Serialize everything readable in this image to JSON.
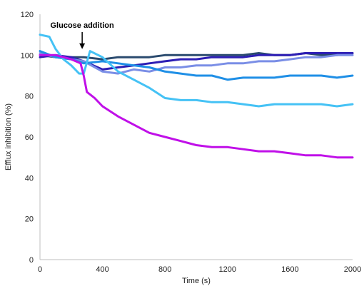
{
  "chart_data": {
    "type": "line",
    "xlabel": "Time (s)",
    "ylabel": "Efflux inhibition (%)",
    "xlim": [
      0,
      2000
    ],
    "ylim": [
      0,
      120
    ],
    "xticks": [
      0,
      400,
      800,
      1200,
      1600,
      2000
    ],
    "yticks": [
      0,
      20,
      40,
      60,
      80,
      100,
      120
    ],
    "grid": false,
    "legend": "none",
    "annotation": {
      "text": "Glucose addition",
      "x": 270,
      "y": 103
    },
    "series": [
      {
        "color": "#2a4a6e",
        "x": [
          0,
          100,
          200,
          280,
          400,
          500,
          600,
          700,
          800,
          900,
          1000,
          1100,
          1200,
          1300,
          1400,
          1500,
          1600,
          1700,
          1800,
          1900,
          2000
        ],
        "y": [
          100,
          99,
          99,
          99,
          98,
          99,
          99,
          99,
          100,
          100,
          100,
          100,
          100,
          100,
          101,
          100,
          100,
          101,
          100,
          100,
          101
        ]
      },
      {
        "color": "#2d1eb4",
        "x": [
          0,
          100,
          200,
          280,
          400,
          500,
          600,
          700,
          800,
          900,
          1000,
          1100,
          1200,
          1300,
          1400,
          1500,
          1600,
          1700,
          1800,
          1900,
          2000
        ],
        "y": [
          99,
          100,
          99,
          97,
          93,
          94,
          95,
          96,
          97,
          98,
          98,
          99,
          99,
          99,
          100,
          100,
          100,
          101,
          101,
          101,
          101
        ]
      },
      {
        "color": "#7a8ee6",
        "x": [
          0,
          100,
          200,
          280,
          400,
          500,
          600,
          700,
          800,
          900,
          1000,
          1100,
          1200,
          1300,
          1400,
          1500,
          1600,
          1700,
          1800,
          1900,
          2000
        ],
        "y": [
          101,
          99,
          98,
          97,
          92,
          91,
          93,
          92,
          94,
          94,
          95,
          95,
          96,
          96,
          97,
          97,
          98,
          99,
          99,
          100,
          100
        ]
      },
      {
        "color": "#1f8fe6",
        "x": [
          0,
          100,
          200,
          280,
          400,
          500,
          600,
          700,
          800,
          900,
          1000,
          1100,
          1200,
          1300,
          1400,
          1500,
          1600,
          1700,
          1800,
          1900,
          2000
        ],
        "y": [
          102,
          99,
          98,
          96,
          97,
          96,
          95,
          94,
          92,
          91,
          90,
          90,
          88,
          89,
          89,
          89,
          90,
          90,
          90,
          89,
          90
        ]
      },
      {
        "color": "#45c2f5",
        "x": [
          0,
          60,
          100,
          150,
          200,
          250,
          280,
          320,
          400,
          500,
          600,
          700,
          800,
          900,
          1000,
          1100,
          1200,
          1300,
          1400,
          1500,
          1600,
          1700,
          1800,
          1900,
          2000
        ],
        "y": [
          110,
          109,
          103,
          98,
          95,
          91,
          91,
          102,
          99,
          92,
          88,
          84,
          79,
          78,
          78,
          77,
          77,
          76,
          75,
          76,
          76,
          76,
          76,
          75,
          76
        ]
      },
      {
        "color": "#c010e8",
        "x": [
          0,
          100,
          200,
          260,
          280,
          300,
          350,
          400,
          500,
          600,
          700,
          800,
          900,
          1000,
          1100,
          1200,
          1300,
          1400,
          1500,
          1600,
          1700,
          1800,
          1900,
          2000
        ],
        "y": [
          100,
          100,
          98,
          96,
          90,
          82,
          79,
          75,
          70,
          66,
          62,
          60,
          58,
          56,
          55,
          55,
          54,
          53,
          53,
          52,
          51,
          51,
          50,
          50
        ]
      }
    ]
  }
}
